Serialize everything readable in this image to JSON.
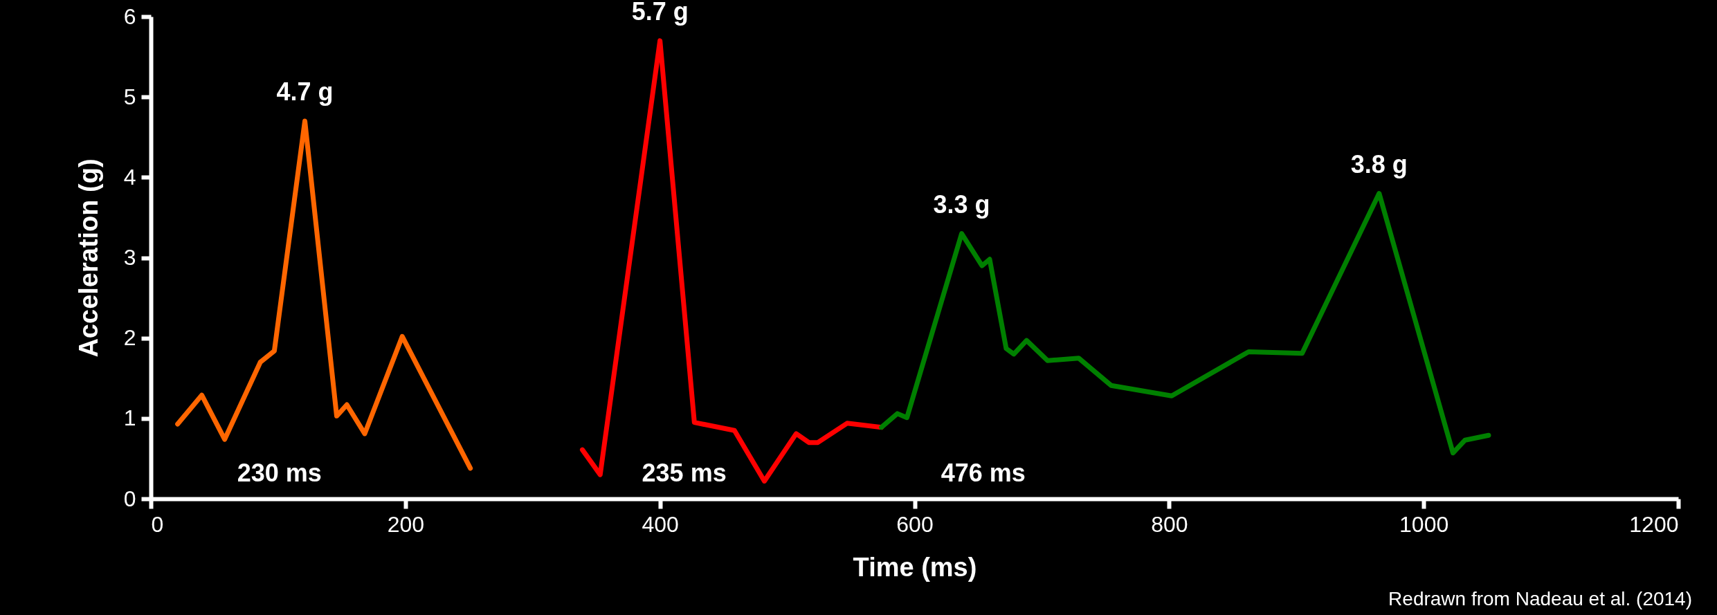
{
  "chart_data": {
    "type": "line",
    "xlabel": "Time (ms)",
    "ylabel": "Acceleration (g)",
    "xlim": [
      0,
      1200
    ],
    "xticks": [
      0,
      200,
      400,
      600,
      800,
      1000,
      1200
    ],
    "ylim": [
      0,
      6
    ],
    "yticks": [
      0,
      1,
      2,
      3,
      4,
      5,
      6
    ],
    "grid": false,
    "series": [
      {
        "color": "#ff6600",
        "x": [
          21,
          40,
          58,
          86,
          97,
          121,
          146,
          154,
          168,
          197.5,
          251
        ],
        "values": [
          0.93,
          1.29,
          0.74,
          1.7,
          1.84,
          4.7,
          1.03,
          1.17,
          0.81,
          2.02,
          0.38
        ]
      },
      {
        "color": "#ff0000",
        "x": [
          339,
          353,
          400,
          427,
          458.5,
          482,
          507,
          517,
          524,
          547,
          574
        ],
        "values": [
          0.61,
          0.3,
          5.7,
          0.95,
          0.85,
          0.22,
          0.81,
          0.7,
          0.7,
          0.94,
          0.89
        ]
      },
      {
        "color": "#008000",
        "x": [
          574,
          586.5,
          594,
          637,
          653,
          659,
          672,
          678,
          688,
          704.5,
          729,
          754.5,
          802,
          862.5,
          904.5,
          965,
          1023,
          1032.5,
          1051
        ],
        "values": [
          0.89,
          1.06,
          1.01,
          3.3,
          2.9,
          2.98,
          1.87,
          1.8,
          1.97,
          1.72,
          1.75,
          1.41,
          1.28,
          1.83,
          1.81,
          3.8,
          0.57,
          0.73,
          0.79
        ]
      }
    ],
    "annotations": [
      {
        "text": "4.7 g",
        "x": 121,
        "y": 4.7
      },
      {
        "text": "5.7 g",
        "x": 400,
        "y": 5.7
      },
      {
        "text": "3.3 g",
        "x": 637,
        "y": 3.3
      },
      {
        "text": "3.8 g",
        "x": 965,
        "y": 3.8
      },
      "230 ms",
      "235 ms",
      "476 ms",
      "Redrawn from Nadeau et al. (2014)"
    ]
  }
}
